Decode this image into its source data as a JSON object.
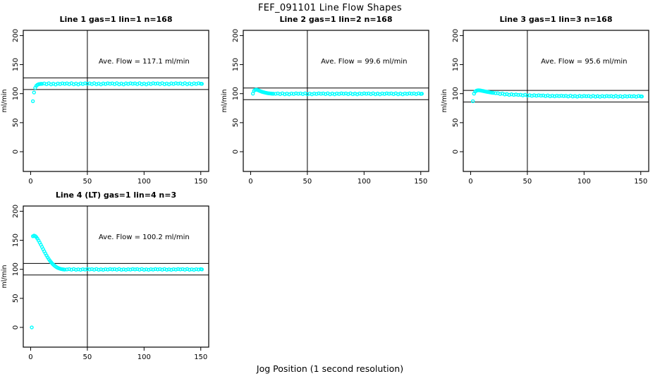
{
  "figure": {
    "title": "FEF_091101  Line Flow Shapes",
    "xlabel": "Jog Position (1 second resolution)",
    "marker_color": "#00FFFF",
    "axis_color": "#000000",
    "background": "#FFFFFF"
  },
  "chart_data": [
    {
      "type": "scatter",
      "title": "Line 1 gas=1 lin=1 n=168",
      "ylabel": "ml/min",
      "ave_flow": 117.1,
      "annotation": {
        "text": "Ave. Flow =  117.1  ml/min",
        "x": 100,
        "y": 152
      },
      "xlim": [
        -6.5,
        157
      ],
      "ylim": [
        -34,
        209
      ],
      "xticks": [
        0,
        50,
        100,
        150
      ],
      "yticks": [
        0,
        50,
        100,
        150,
        200
      ],
      "vline": 50,
      "hlines": [
        107.1,
        127.1
      ],
      "points": [
        [
          2,
          87
        ],
        [
          3,
          102
        ],
        [
          4,
          110
        ],
        [
          5,
          113.5
        ],
        [
          6,
          115.2
        ],
        [
          7,
          116.2
        ],
        [
          8,
          116.6
        ],
        [
          9,
          116.8
        ],
        [
          10,
          116.8
        ],
        [
          12,
          117.5
        ],
        [
          14,
          116.3
        ],
        [
          16,
          117.8
        ],
        [
          18,
          116.0
        ],
        [
          20,
          117.2
        ],
        [
          22,
          115.8
        ],
        [
          24,
          117.4
        ],
        [
          26,
          116.5
        ],
        [
          28,
          117.7
        ],
        [
          30,
          116.9
        ],
        [
          32,
          117.6
        ],
        [
          34,
          116.4
        ],
        [
          36,
          117.9
        ],
        [
          38,
          116.1
        ],
        [
          40,
          117.3
        ],
        [
          42,
          115.9
        ],
        [
          44,
          117.5
        ],
        [
          46,
          116.6
        ],
        [
          48,
          117.8
        ],
        [
          50,
          117.0
        ],
        [
          52,
          117.6
        ],
        [
          54,
          116.4
        ],
        [
          56,
          117.9
        ],
        [
          58,
          116.2
        ],
        [
          60,
          117.3
        ],
        [
          62,
          116.0
        ],
        [
          64,
          117.5
        ],
        [
          66,
          116.6
        ],
        [
          68,
          117.8
        ],
        [
          70,
          117.0
        ],
        [
          72,
          117.7
        ],
        [
          74,
          116.4
        ],
        [
          76,
          117.9
        ],
        [
          78,
          116.1
        ],
        [
          80,
          117.4
        ],
        [
          82,
          116.0
        ],
        [
          84,
          117.6
        ],
        [
          86,
          116.7
        ],
        [
          88,
          117.8
        ],
        [
          90,
          117.0
        ],
        [
          92,
          117.6
        ],
        [
          94,
          116.4
        ],
        [
          96,
          118.0
        ],
        [
          98,
          116.2
        ],
        [
          100,
          117.4
        ],
        [
          102,
          116.0
        ],
        [
          104,
          117.6
        ],
        [
          106,
          116.6
        ],
        [
          108,
          117.9
        ],
        [
          110,
          117.1
        ],
        [
          112,
          117.7
        ],
        [
          114,
          116.5
        ],
        [
          116,
          118.0
        ],
        [
          118,
          116.2
        ],
        [
          120,
          117.4
        ],
        [
          122,
          116.1
        ],
        [
          124,
          117.6
        ],
        [
          126,
          116.7
        ],
        [
          128,
          117.9
        ],
        [
          130,
          117.1
        ],
        [
          132,
          117.7
        ],
        [
          134,
          116.4
        ],
        [
          136,
          118.0
        ],
        [
          138,
          116.2
        ],
        [
          140,
          117.5
        ],
        [
          142,
          116.1
        ],
        [
          144,
          117.7
        ],
        [
          146,
          116.7
        ],
        [
          148,
          117.9
        ],
        [
          150,
          117.1
        ],
        [
          151,
          116.8
        ]
      ]
    },
    {
      "type": "scatter",
      "title": "Line 2 gas=1 lin=2 n=168",
      "ylabel": "ml/min",
      "ave_flow": 99.6,
      "annotation": {
        "text": "Ave. Flow =  99.6  ml/min",
        "x": 100,
        "y": 152
      },
      "xlim": [
        -6.5,
        157
      ],
      "ylim": [
        -34,
        209
      ],
      "xticks": [
        0,
        50,
        100,
        150
      ],
      "yticks": [
        0,
        50,
        100,
        150,
        200
      ],
      "vline": 50,
      "hlines": [
        89.6,
        109.6
      ],
      "points": [
        [
          2,
          100
        ],
        [
          3,
          105
        ],
        [
          4,
          106.5
        ],
        [
          5,
          106.9
        ],
        [
          6,
          106.4
        ],
        [
          7,
          105.6
        ],
        [
          8,
          104.7
        ],
        [
          9,
          103.9
        ],
        [
          10,
          103.2
        ],
        [
          11,
          102.6
        ],
        [
          12,
          102.1
        ],
        [
          13,
          101.6
        ],
        [
          14,
          101.2
        ],
        [
          15,
          100.8
        ],
        [
          16,
          100.5
        ],
        [
          17,
          100.3
        ],
        [
          18,
          100.1
        ],
        [
          19,
          99.9
        ],
        [
          20,
          99.8
        ],
        [
          22,
          99.7
        ],
        [
          24,
          100.3
        ],
        [
          26,
          99.2
        ],
        [
          28,
          100.5
        ],
        [
          30,
          99.0
        ],
        [
          32,
          100.0
        ],
        [
          34,
          98.9
        ],
        [
          36,
          100.2
        ],
        [
          38,
          99.4
        ],
        [
          40,
          100.4
        ],
        [
          42,
          99.7
        ],
        [
          44,
          100.3
        ],
        [
          46,
          99.2
        ],
        [
          48,
          100.5
        ],
        [
          50,
          99.0
        ],
        [
          52,
          100.0
        ],
        [
          54,
          98.9
        ],
        [
          56,
          100.2
        ],
        [
          58,
          99.4
        ],
        [
          60,
          100.4
        ],
        [
          62,
          99.7
        ],
        [
          64,
          100.3
        ],
        [
          66,
          99.2
        ],
        [
          68,
          100.5
        ],
        [
          70,
          99.0
        ],
        [
          72,
          100.1
        ],
        [
          74,
          98.9
        ],
        [
          76,
          100.2
        ],
        [
          78,
          99.4
        ],
        [
          80,
          100.4
        ],
        [
          82,
          99.7
        ],
        [
          84,
          100.3
        ],
        [
          86,
          99.2
        ],
        [
          88,
          100.5
        ],
        [
          90,
          99.1
        ],
        [
          92,
          100.1
        ],
        [
          94,
          98.9
        ],
        [
          96,
          100.2
        ],
        [
          98,
          99.4
        ],
        [
          100,
          100.4
        ],
        [
          102,
          99.7
        ],
        [
          104,
          100.3
        ],
        [
          106,
          99.2
        ],
        [
          108,
          100.5
        ],
        [
          110,
          99.0
        ],
        [
          112,
          100.1
        ],
        [
          114,
          98.9
        ],
        [
          116,
          100.2
        ],
        [
          118,
          99.4
        ],
        [
          120,
          100.4
        ],
        [
          122,
          99.7
        ],
        [
          124,
          100.3
        ],
        [
          126,
          99.2
        ],
        [
          128,
          100.5
        ],
        [
          130,
          99.0
        ],
        [
          132,
          100.1
        ],
        [
          134,
          98.9
        ],
        [
          136,
          100.2
        ],
        [
          138,
          99.5
        ],
        [
          140,
          100.4
        ],
        [
          142,
          99.7
        ],
        [
          144,
          100.3
        ],
        [
          146,
          99.2
        ],
        [
          148,
          100.5
        ],
        [
          150,
          99.6
        ],
        [
          151,
          99.8
        ]
      ]
    },
    {
      "type": "scatter",
      "title": "Line 3 gas=1 lin=3 n=168",
      "ylabel": "ml/min",
      "ave_flow": 95.6,
      "annotation": {
        "text": "Ave. Flow =  95.6  ml/min",
        "x": 100,
        "y": 152
      },
      "xlim": [
        -6.5,
        157
      ],
      "ylim": [
        -34,
        209
      ],
      "xticks": [
        0,
        50,
        100,
        150
      ],
      "yticks": [
        0,
        50,
        100,
        150,
        200
      ],
      "vline": 50,
      "hlines": [
        85.6,
        105.6
      ],
      "points": [
        [
          2,
          87
        ],
        [
          3,
          100
        ],
        [
          4,
          103.5
        ],
        [
          5,
          105
        ],
        [
          6,
          105.6
        ],
        [
          7,
          105.8
        ],
        [
          8,
          105.6
        ],
        [
          9,
          105.3
        ],
        [
          10,
          104.9
        ],
        [
          11,
          104.5
        ],
        [
          12,
          104.1
        ],
        [
          13,
          103.7
        ],
        [
          14,
          103.3
        ],
        [
          15,
          102.9
        ],
        [
          16,
          102.6
        ],
        [
          17,
          102.2
        ],
        [
          18,
          101.9
        ],
        [
          19,
          101.6
        ],
        [
          20,
          101.3
        ],
        [
          22,
          100.8
        ],
        [
          24,
          100.8
        ],
        [
          26,
          99.4
        ],
        [
          28,
          100.2
        ],
        [
          30,
          98.6
        ],
        [
          32,
          99.2
        ],
        [
          34,
          97.9
        ],
        [
          36,
          98.9
        ],
        [
          38,
          97.9
        ],
        [
          40,
          98.6
        ],
        [
          42,
          97.8
        ],
        [
          44,
          98.1
        ],
        [
          46,
          97.0
        ],
        [
          48,
          98.0
        ],
        [
          50,
          96.6
        ],
        [
          52,
          97.3
        ],
        [
          54,
          96.2
        ],
        [
          56,
          97.3
        ],
        [
          58,
          96.4
        ],
        [
          60,
          97.2
        ],
        [
          62,
          96.5
        ],
        [
          64,
          96.9
        ],
        [
          66,
          95.8
        ],
        [
          68,
          96.9
        ],
        [
          70,
          95.5
        ],
        [
          72,
          96.4
        ],
        [
          74,
          95.4
        ],
        [
          76,
          96.4
        ],
        [
          78,
          95.7
        ],
        [
          80,
          96.4
        ],
        [
          82,
          95.8
        ],
        [
          84,
          96.2
        ],
        [
          86,
          95.2
        ],
        [
          88,
          96.4
        ],
        [
          90,
          95.1
        ],
        [
          92,
          95.9
        ],
        [
          94,
          94.9
        ],
        [
          96,
          96.0
        ],
        [
          98,
          95.2
        ],
        [
          100,
          96.1
        ],
        [
          102,
          95.5
        ],
        [
          104,
          95.9
        ],
        [
          106,
          94.9
        ],
        [
          108,
          96.1
        ],
        [
          110,
          94.8
        ],
        [
          112,
          95.7
        ],
        [
          114,
          94.7
        ],
        [
          116,
          95.8
        ],
        [
          118,
          95.0
        ],
        [
          120,
          95.9
        ],
        [
          122,
          95.3
        ],
        [
          124,
          95.8
        ],
        [
          126,
          94.8
        ],
        [
          128,
          96.0
        ],
        [
          130,
          94.7
        ],
        [
          132,
          95.6
        ],
        [
          134,
          94.6
        ],
        [
          136,
          95.8
        ],
        [
          138,
          95.0
        ],
        [
          140,
          95.8
        ],
        [
          142,
          95.2
        ],
        [
          144,
          95.7
        ],
        [
          146,
          94.7
        ],
        [
          148,
          95.9
        ],
        [
          150,
          95.3
        ],
        [
          151,
          95.1
        ]
      ]
    },
    {
      "type": "scatter",
      "title": "Line 4 (LT) gas=1 lin=4 n=3",
      "ylabel": "ml/min",
      "ave_flow": 100.2,
      "annotation": {
        "text": "Ave. Flow =  100.2  ml/min",
        "x": 100,
        "y": 152
      },
      "xlim": [
        -6.5,
        157
      ],
      "ylim": [
        -34,
        209
      ],
      "xticks": [
        0,
        50,
        100,
        150
      ],
      "yticks": [
        0,
        50,
        100,
        150,
        200
      ],
      "vline": 50,
      "hlines": [
        90.2,
        110.2
      ],
      "points": [
        [
          1,
          0
        ],
        [
          2,
          157
        ],
        [
          3,
          158
        ],
        [
          4,
          157.3
        ],
        [
          5,
          155.5
        ],
        [
          6,
          152.8
        ],
        [
          7,
          149.5
        ],
        [
          8,
          146
        ],
        [
          9,
          142.3
        ],
        [
          10,
          138.5
        ],
        [
          11,
          134.8
        ],
        [
          12,
          131
        ],
        [
          13,
          127.4
        ],
        [
          14,
          123.9
        ],
        [
          15,
          120.6
        ],
        [
          16,
          117.6
        ],
        [
          17,
          114.8
        ],
        [
          18,
          112.3
        ],
        [
          19,
          110
        ],
        [
          20,
          108
        ],
        [
          21,
          106.3
        ],
        [
          22,
          104.8
        ],
        [
          23,
          103.5
        ],
        [
          24,
          102.5
        ],
        [
          25,
          101.7
        ],
        [
          26,
          101
        ],
        [
          27,
          100.5
        ],
        [
          28,
          100.1
        ],
        [
          29,
          99.8
        ],
        [
          30,
          99.6
        ],
        [
          32,
          99.8
        ],
        [
          34,
          100.3
        ],
        [
          36,
          99.4
        ],
        [
          38,
          100.5
        ],
        [
          40,
          99.3
        ],
        [
          42,
          100.0
        ],
        [
          44,
          99.2
        ],
        [
          46,
          100.2
        ],
        [
          48,
          99.6
        ],
        [
          50,
          100.4
        ],
        [
          52,
          99.8
        ],
        [
          54,
          100.3
        ],
        [
          56,
          99.4
        ],
        [
          58,
          100.5
        ],
        [
          60,
          99.3
        ],
        [
          62,
          100.0
        ],
        [
          64,
          99.2
        ],
        [
          66,
          100.2
        ],
        [
          68,
          99.6
        ],
        [
          70,
          100.4
        ],
        [
          72,
          99.8
        ],
        [
          74,
          100.3
        ],
        [
          76,
          99.4
        ],
        [
          78,
          100.5
        ],
        [
          80,
          99.3
        ],
        [
          82,
          100.0
        ],
        [
          84,
          99.2
        ],
        [
          86,
          100.2
        ],
        [
          88,
          99.6
        ],
        [
          90,
          100.4
        ],
        [
          92,
          99.8
        ],
        [
          94,
          100.3
        ],
        [
          96,
          99.4
        ],
        [
          98,
          100.5
        ],
        [
          100,
          99.3
        ],
        [
          102,
          100.0
        ],
        [
          104,
          99.2
        ],
        [
          106,
          100.2
        ],
        [
          108,
          99.6
        ],
        [
          110,
          100.4
        ],
        [
          112,
          99.8
        ],
        [
          114,
          100.3
        ],
        [
          116,
          99.4
        ],
        [
          118,
          100.5
        ],
        [
          120,
          99.3
        ],
        [
          122,
          100.0
        ],
        [
          124,
          99.2
        ],
        [
          126,
          100.2
        ],
        [
          128,
          99.6
        ],
        [
          130,
          100.4
        ],
        [
          132,
          99.8
        ],
        [
          134,
          100.3
        ],
        [
          136,
          99.4
        ],
        [
          138,
          100.5
        ],
        [
          140,
          99.3
        ],
        [
          142,
          100.0
        ],
        [
          144,
          99.2
        ],
        [
          146,
          100.2
        ],
        [
          148,
          99.6
        ],
        [
          150,
          100.3
        ],
        [
          151,
          99.9
        ]
      ]
    }
  ]
}
